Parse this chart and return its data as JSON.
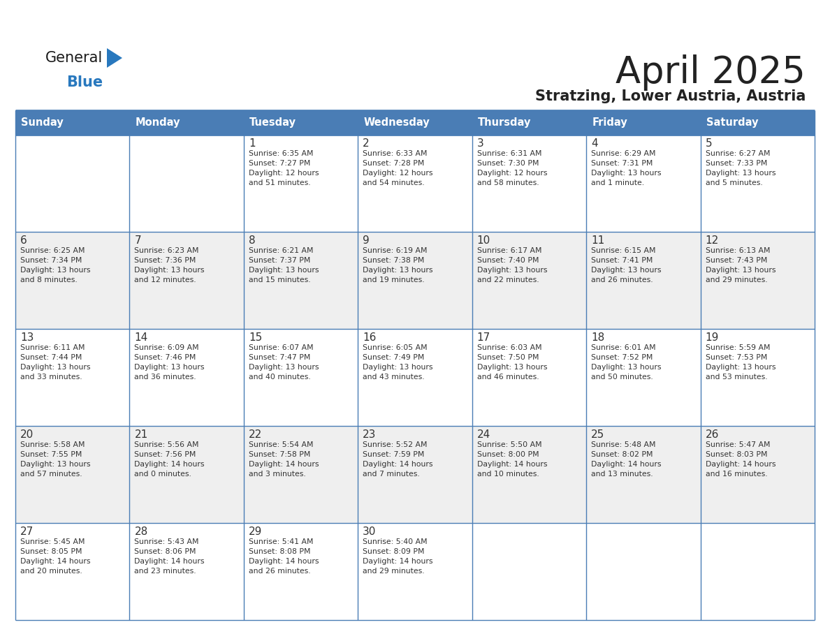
{
  "title": "April 2025",
  "subtitle": "Stratzing, Lower Austria, Austria",
  "header_color": "#4a7db5",
  "header_text_color": "#ffffff",
  "cell_bg_white": "#ffffff",
  "cell_bg_gray": "#efefef",
  "border_color": "#4a7db5",
  "text_color": "#333333",
  "day_headers": [
    "Sunday",
    "Monday",
    "Tuesday",
    "Wednesday",
    "Thursday",
    "Friday",
    "Saturday"
  ],
  "weeks": [
    [
      {
        "day": "",
        "info": ""
      },
      {
        "day": "",
        "info": ""
      },
      {
        "day": "1",
        "info": "Sunrise: 6:35 AM\nSunset: 7:27 PM\nDaylight: 12 hours\nand 51 minutes."
      },
      {
        "day": "2",
        "info": "Sunrise: 6:33 AM\nSunset: 7:28 PM\nDaylight: 12 hours\nand 54 minutes."
      },
      {
        "day": "3",
        "info": "Sunrise: 6:31 AM\nSunset: 7:30 PM\nDaylight: 12 hours\nand 58 minutes."
      },
      {
        "day": "4",
        "info": "Sunrise: 6:29 AM\nSunset: 7:31 PM\nDaylight: 13 hours\nand 1 minute."
      },
      {
        "day": "5",
        "info": "Sunrise: 6:27 AM\nSunset: 7:33 PM\nDaylight: 13 hours\nand 5 minutes."
      }
    ],
    [
      {
        "day": "6",
        "info": "Sunrise: 6:25 AM\nSunset: 7:34 PM\nDaylight: 13 hours\nand 8 minutes."
      },
      {
        "day": "7",
        "info": "Sunrise: 6:23 AM\nSunset: 7:36 PM\nDaylight: 13 hours\nand 12 minutes."
      },
      {
        "day": "8",
        "info": "Sunrise: 6:21 AM\nSunset: 7:37 PM\nDaylight: 13 hours\nand 15 minutes."
      },
      {
        "day": "9",
        "info": "Sunrise: 6:19 AM\nSunset: 7:38 PM\nDaylight: 13 hours\nand 19 minutes."
      },
      {
        "day": "10",
        "info": "Sunrise: 6:17 AM\nSunset: 7:40 PM\nDaylight: 13 hours\nand 22 minutes."
      },
      {
        "day": "11",
        "info": "Sunrise: 6:15 AM\nSunset: 7:41 PM\nDaylight: 13 hours\nand 26 minutes."
      },
      {
        "day": "12",
        "info": "Sunrise: 6:13 AM\nSunset: 7:43 PM\nDaylight: 13 hours\nand 29 minutes."
      }
    ],
    [
      {
        "day": "13",
        "info": "Sunrise: 6:11 AM\nSunset: 7:44 PM\nDaylight: 13 hours\nand 33 minutes."
      },
      {
        "day": "14",
        "info": "Sunrise: 6:09 AM\nSunset: 7:46 PM\nDaylight: 13 hours\nand 36 minutes."
      },
      {
        "day": "15",
        "info": "Sunrise: 6:07 AM\nSunset: 7:47 PM\nDaylight: 13 hours\nand 40 minutes."
      },
      {
        "day": "16",
        "info": "Sunrise: 6:05 AM\nSunset: 7:49 PM\nDaylight: 13 hours\nand 43 minutes."
      },
      {
        "day": "17",
        "info": "Sunrise: 6:03 AM\nSunset: 7:50 PM\nDaylight: 13 hours\nand 46 minutes."
      },
      {
        "day": "18",
        "info": "Sunrise: 6:01 AM\nSunset: 7:52 PM\nDaylight: 13 hours\nand 50 minutes."
      },
      {
        "day": "19",
        "info": "Sunrise: 5:59 AM\nSunset: 7:53 PM\nDaylight: 13 hours\nand 53 minutes."
      }
    ],
    [
      {
        "day": "20",
        "info": "Sunrise: 5:58 AM\nSunset: 7:55 PM\nDaylight: 13 hours\nand 57 minutes."
      },
      {
        "day": "21",
        "info": "Sunrise: 5:56 AM\nSunset: 7:56 PM\nDaylight: 14 hours\nand 0 minutes."
      },
      {
        "day": "22",
        "info": "Sunrise: 5:54 AM\nSunset: 7:58 PM\nDaylight: 14 hours\nand 3 minutes."
      },
      {
        "day": "23",
        "info": "Sunrise: 5:52 AM\nSunset: 7:59 PM\nDaylight: 14 hours\nand 7 minutes."
      },
      {
        "day": "24",
        "info": "Sunrise: 5:50 AM\nSunset: 8:00 PM\nDaylight: 14 hours\nand 10 minutes."
      },
      {
        "day": "25",
        "info": "Sunrise: 5:48 AM\nSunset: 8:02 PM\nDaylight: 14 hours\nand 13 minutes."
      },
      {
        "day": "26",
        "info": "Sunrise: 5:47 AM\nSunset: 8:03 PM\nDaylight: 14 hours\nand 16 minutes."
      }
    ],
    [
      {
        "day": "27",
        "info": "Sunrise: 5:45 AM\nSunset: 8:05 PM\nDaylight: 14 hours\nand 20 minutes."
      },
      {
        "day": "28",
        "info": "Sunrise: 5:43 AM\nSunset: 8:06 PM\nDaylight: 14 hours\nand 23 minutes."
      },
      {
        "day": "29",
        "info": "Sunrise: 5:41 AM\nSunset: 8:08 PM\nDaylight: 14 hours\nand 26 minutes."
      },
      {
        "day": "30",
        "info": "Sunrise: 5:40 AM\nSunset: 8:09 PM\nDaylight: 14 hours\nand 29 minutes."
      },
      {
        "day": "",
        "info": ""
      },
      {
        "day": "",
        "info": ""
      },
      {
        "day": "",
        "info": ""
      }
    ]
  ],
  "logo_color_general": "#1a1a1a",
  "logo_color_blue": "#2878be",
  "logo_triangle_color": "#2878be"
}
